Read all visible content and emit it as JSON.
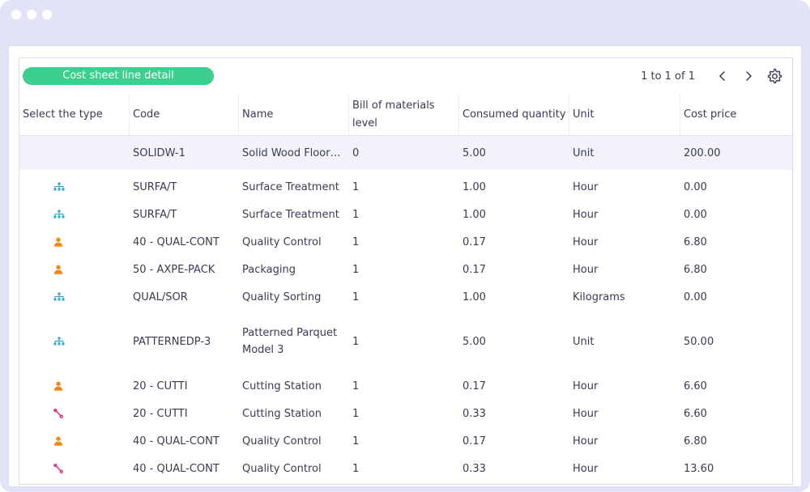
{
  "toolbar": {
    "primary_button_label": "Cost sheet line detail",
    "pager_text": "1 to 1 of 1"
  },
  "table": {
    "headers": [
      "Select the type",
      "Code",
      "Name",
      "Bill of materials level",
      "Consumed quantity",
      "Unit",
      "Cost price"
    ],
    "rows": [
      {
        "type_icon": "",
        "code": "SOLIDW-1",
        "name": "Solid Wood Floor…",
        "level": "0",
        "qty": "5.00",
        "unit": "Unit",
        "cost": "200.00"
      },
      {
        "type_icon": "hierarchy-icon",
        "code": "SURFA/T",
        "name": "Surface Treatment",
        "level": "1",
        "qty": "1.00",
        "unit": "Hour",
        "cost": "0.00"
      },
      {
        "type_icon": "hierarchy-icon",
        "code": "SURFA/T",
        "name": "Surface Treatment",
        "level": "1",
        "qty": "1.00",
        "unit": "Hour",
        "cost": "0.00"
      },
      {
        "type_icon": "person-icon",
        "code": "40 - QUAL-CONT",
        "name": "Quality Control",
        "level": "1",
        "qty": "0.17",
        "unit": "Hour",
        "cost": "6.80"
      },
      {
        "type_icon": "person-icon",
        "code": "50 - AXPE-PACK",
        "name": "Packaging",
        "level": "1",
        "qty": "0.17",
        "unit": "Hour",
        "cost": "6.80"
      },
      {
        "type_icon": "hierarchy-icon",
        "code": "QUAL/SOR",
        "name": "Quality Sorting",
        "level": "1",
        "qty": "1.00",
        "unit": "Kilograms",
        "cost": "0.00"
      },
      {
        "type_icon": "hierarchy-icon",
        "code": "PATTERNEDP-3",
        "name": "Patterned Parquet Model 3",
        "level": "1",
        "qty": "5.00",
        "unit": "Unit",
        "cost": "50.00"
      },
      {
        "type_icon": "person-icon",
        "code": "20 - CUTTI",
        "name": "Cutting Station",
        "level": "1",
        "qty": "0.17",
        "unit": "Hour",
        "cost": "6.60"
      },
      {
        "type_icon": "wrench-icon",
        "code": "20 - CUTTI",
        "name": "Cutting Station",
        "level": "1",
        "qty": "0.33",
        "unit": "Hour",
        "cost": "6.60"
      },
      {
        "type_icon": "person-icon",
        "code": "40 - QUAL-CONT",
        "name": "Quality Control",
        "level": "1",
        "qty": "0.17",
        "unit": "Hour",
        "cost": "6.80"
      },
      {
        "type_icon": "wrench-icon",
        "code": "40 - QUAL-CONT",
        "name": "Quality Control",
        "level": "1",
        "qty": "0.33",
        "unit": "Hour",
        "cost": "13.60"
      }
    ]
  },
  "colors": {
    "accent_green": "#3dcf8e",
    "hierarchy_icon": "#2aa7c9",
    "person_icon": "#f08a12",
    "wrench_icon": "#e0398a",
    "selected_row": "#f2f2fb"
  }
}
